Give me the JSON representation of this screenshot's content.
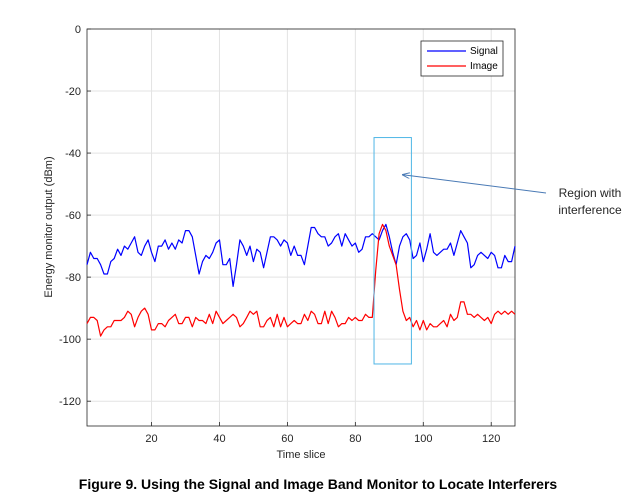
{
  "chart_data": {
    "type": "line",
    "title": "",
    "xlabel": "Time slice",
    "ylabel": "Energy monitor output (dBm)",
    "xlim": [
      1,
      127
    ],
    "ylim": [
      -128,
      0
    ],
    "xticks": [
      20,
      40,
      60,
      80,
      100,
      120
    ],
    "yticks": [
      0,
      -20,
      -40,
      -60,
      -80,
      -100,
      -120
    ],
    "grid": true,
    "legend_position": "top-right",
    "series": [
      {
        "name": "Signal",
        "color": "#0000ff",
        "x": [
          1,
          2,
          3,
          4,
          5,
          6,
          7,
          8,
          9,
          10,
          11,
          12,
          13,
          14,
          15,
          16,
          17,
          18,
          19,
          20,
          21,
          22,
          23,
          24,
          25,
          26,
          27,
          28,
          29,
          30,
          31,
          32,
          33,
          34,
          35,
          36,
          37,
          38,
          39,
          40,
          41,
          42,
          43,
          44,
          45,
          46,
          47,
          48,
          49,
          50,
          51,
          52,
          53,
          54,
          55,
          56,
          57,
          58,
          59,
          60,
          61,
          62,
          63,
          64,
          65,
          66,
          67,
          68,
          69,
          70,
          71,
          72,
          73,
          74,
          75,
          76,
          77,
          78,
          79,
          80,
          81,
          82,
          83,
          84,
          85,
          86,
          87,
          88,
          89,
          90,
          91,
          92,
          93,
          94,
          95,
          96,
          97,
          98,
          99,
          100,
          101,
          102,
          103,
          104,
          105,
          106,
          107,
          108,
          109,
          110,
          111,
          112,
          113,
          114,
          115,
          116,
          117,
          118,
          119,
          120,
          121,
          122,
          123,
          124,
          125,
          126,
          127
        ],
        "y": [
          -76,
          -72,
          -74,
          -74,
          -76,
          -79,
          -79,
          -75,
          -74,
          -71,
          -73,
          -70,
          -71,
          -69,
          -67,
          -72,
          -73,
          -70,
          -68,
          -72,
          -75,
          -70,
          -70,
          -68,
          -71,
          -69,
          -71,
          -68,
          -69,
          -65,
          -65,
          -67,
          -73,
          -79,
          -75,
          -73,
          -74,
          -72,
          -69,
          -68,
          -76,
          -76,
          -74,
          -83,
          -76,
          -68,
          -70,
          -73,
          -70,
          -75,
          -71,
          -72,
          -77,
          -72,
          -67,
          -67,
          -68,
          -70,
          -68,
          -69,
          -73,
          -70,
          -73,
          -73,
          -76,
          -70,
          -64,
          -64,
          -66,
          -67,
          -67,
          -70,
          -69,
          -67,
          -66,
          -70,
          -66,
          -68,
          -70,
          -69,
          -72,
          -71,
          -67,
          -67,
          -66,
          -67,
          -68,
          -65,
          -63,
          -67,
          -72,
          -76,
          -70,
          -67,
          -66,
          -68,
          -74,
          -73,
          -69,
          -75,
          -71,
          -66,
          -72,
          -73,
          -72,
          -71,
          -71,
          -69,
          -73,
          -69,
          -65,
          -67,
          -69,
          -77,
          -76,
          -73,
          -72,
          -73,
          -74,
          -72,
          -73,
          -77,
          -77,
          -73,
          -75,
          -75,
          -70
        ]
      },
      {
        "name": "Image",
        "color": "#ff0000",
        "x": [
          1,
          2,
          3,
          4,
          5,
          6,
          7,
          8,
          9,
          10,
          11,
          12,
          13,
          14,
          15,
          16,
          17,
          18,
          19,
          20,
          21,
          22,
          23,
          24,
          25,
          26,
          27,
          28,
          29,
          30,
          31,
          32,
          33,
          34,
          35,
          36,
          37,
          38,
          39,
          40,
          41,
          42,
          43,
          44,
          45,
          46,
          47,
          48,
          49,
          50,
          51,
          52,
          53,
          54,
          55,
          56,
          57,
          58,
          59,
          60,
          61,
          62,
          63,
          64,
          65,
          66,
          67,
          68,
          69,
          70,
          71,
          72,
          73,
          74,
          75,
          76,
          77,
          78,
          79,
          80,
          81,
          82,
          83,
          84,
          85,
          86,
          87,
          88,
          89,
          90,
          91,
          92,
          93,
          94,
          95,
          96,
          97,
          98,
          99,
          100,
          101,
          102,
          103,
          104,
          105,
          106,
          107,
          108,
          109,
          110,
          111,
          112,
          113,
          114,
          115,
          116,
          117,
          118,
          119,
          120,
          121,
          122,
          123,
          124,
          125,
          126,
          127
        ],
        "y": [
          -95,
          -93,
          -93,
          -94,
          -99,
          -97,
          -96,
          -96,
          -94,
          -94,
          -94,
          -93,
          -91,
          -92,
          -96,
          -93,
          -91,
          -90,
          -92,
          -97,
          -97,
          -95,
          -95,
          -96,
          -94,
          -93,
          -92,
          -95,
          -95,
          -93,
          -93,
          -96,
          -93,
          -94,
          -94,
          -95,
          -92,
          -95,
          -91,
          -93,
          -95,
          -94,
          -93,
          -92,
          -93,
          -96,
          -95,
          -93,
          -91,
          -92,
          -91,
          -96,
          -96,
          -94,
          -93,
          -96,
          -92,
          -96,
          -93,
          -96,
          -95,
          -94,
          -95,
          -95,
          -92,
          -94,
          -91,
          -92,
          -95,
          -95,
          -91,
          -95,
          -91,
          -93,
          -96,
          -95,
          -95,
          -93,
          -94,
          -93,
          -94,
          -94,
          -92,
          -93,
          -93,
          -78,
          -66,
          -63,
          -65,
          -70,
          -73,
          -76,
          -84,
          -91,
          -94,
          -93,
          -96,
          -94,
          -97,
          -94,
          -97,
          -95,
          -96,
          -96,
          -95,
          -94,
          -96,
          -92,
          -94,
          -93,
          -88,
          -88,
          -92,
          -92,
          -93,
          -92,
          -93,
          -94,
          -93,
          -95,
          -92,
          -91,
          -92,
          -91,
          -92,
          -91,
          -92
        ]
      }
    ],
    "highlight_box": {
      "x": [
        85.5,
        96.5
      ],
      "y": [
        -108,
        -35
      ]
    },
    "annotation": {
      "text_line1": "Region with",
      "text_line2": "interference",
      "arrow_target": {
        "x": 94,
        "y": -47
      }
    },
    "caption": "Figure 9. Using the Signal and Image Band Monitor to Locate Interferers"
  }
}
